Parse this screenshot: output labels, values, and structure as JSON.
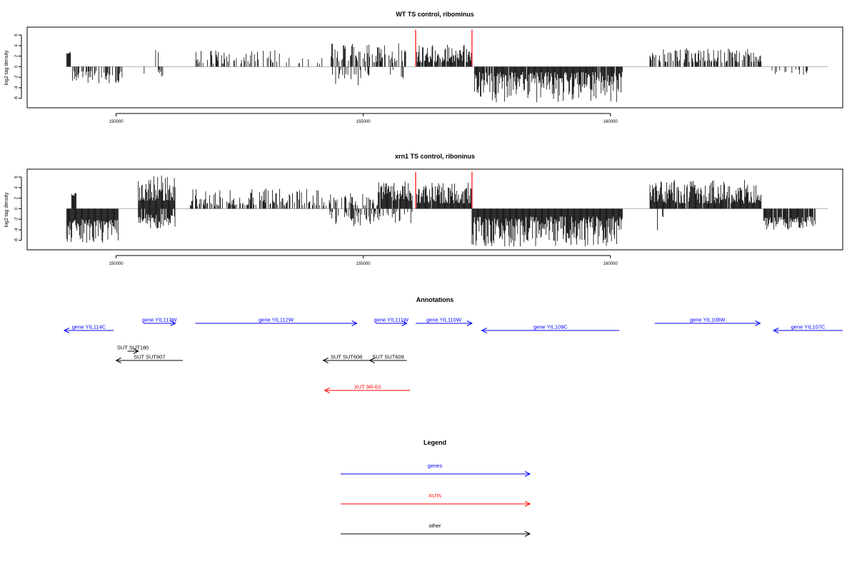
{
  "chart_data": [
    {
      "type": "bar",
      "title": "WT TS control, ribominus",
      "ylabel": "log2 tag density",
      "xlim": [
        148200,
        164700
      ],
      "ylim": [
        -7.8,
        7.5
      ],
      "x_ticks": [
        150000,
        155000,
        160000
      ],
      "x_tick_labels": [
        "150000",
        "155000",
        "160000"
      ],
      "y_ticks": [
        -6,
        -4,
        -2,
        0,
        2,
        4,
        6
      ],
      "y_tick_labels": [
        "-6",
        "-4",
        "-2",
        "0",
        "2",
        "4",
        "6"
      ],
      "baseline": 0,
      "bar_color": "#000000",
      "markers": [
        {
          "x": 156060,
          "y": 7,
          "color": "#ff0000"
        },
        {
          "x": 157200,
          "y": 7,
          "color": "#ff0000"
        }
      ],
      "segments": [
        {
          "from": 149000,
          "to": 149080,
          "sign": 1,
          "min": 2.4,
          "max": 3.0,
          "density": 1.0
        },
        {
          "from": 149080,
          "to": 150150,
          "sign": -1,
          "min": 0.8,
          "max": 3.2,
          "density": 0.5
        },
        {
          "from": 150450,
          "to": 151050,
          "sign": -1,
          "min": 0.5,
          "max": 2.0,
          "density": 0.22
        },
        {
          "from": 150500,
          "to": 150900,
          "sign": 1,
          "min": 0.5,
          "max": 3.4,
          "density": 0.12
        },
        {
          "from": 151600,
          "to": 153500,
          "sign": 1,
          "min": 0.6,
          "max": 3.2,
          "density": 0.32
        },
        {
          "from": 153500,
          "to": 154300,
          "sign": 1,
          "min": 0.5,
          "max": 2.0,
          "density": 0.14
        },
        {
          "from": 154350,
          "to": 155900,
          "sign": 1,
          "min": 0.8,
          "max": 4.4,
          "density": 0.55
        },
        {
          "from": 154350,
          "to": 155150,
          "sign": -1,
          "min": 0.5,
          "max": 3.6,
          "density": 0.2
        },
        {
          "from": 155550,
          "to": 155900,
          "sign": -1,
          "min": 0.5,
          "max": 3.2,
          "density": 0.25
        },
        {
          "from": 156080,
          "to": 157200,
          "sign": 1,
          "min": 0.8,
          "max": 4.2,
          "density": 0.9
        },
        {
          "from": 157250,
          "to": 160250,
          "sign": -1,
          "min": 1.0,
          "max": 6.8,
          "density": 0.95
        },
        {
          "from": 160800,
          "to": 163050,
          "sign": 1,
          "min": 0.8,
          "max": 3.5,
          "density": 0.6
        },
        {
          "from": 163100,
          "to": 164400,
          "sign": -1,
          "min": 0.5,
          "max": 1.8,
          "density": 0.18
        }
      ]
    },
    {
      "type": "bar",
      "title": "xrn1 TS control, riboninus",
      "ylabel": "log2 tag density",
      "xlim": [
        148200,
        164700
      ],
      "ylim": [
        -7.8,
        7.5
      ],
      "x_ticks": [
        150000,
        155000,
        160000
      ],
      "x_tick_labels": [
        "150000",
        "155000",
        "160000"
      ],
      "y_ticks": [
        -6,
        -4,
        -2,
        0,
        2,
        4,
        6
      ],
      "y_tick_labels": [
        "-6",
        "-4",
        "-2",
        "0",
        "2",
        "4",
        "6"
      ],
      "baseline": 0,
      "bar_color": "#000000",
      "markers": [
        {
          "x": 156060,
          "y": 7,
          "color": "#ff0000"
        },
        {
          "x": 157200,
          "y": 7,
          "color": "#ff0000"
        }
      ],
      "segments": [
        {
          "from": 149100,
          "to": 149200,
          "sign": 1,
          "min": 2.5,
          "max": 3.0,
          "density": 1.0
        },
        {
          "from": 149000,
          "to": 150050,
          "sign": -1,
          "min": 2.0,
          "max": 6.5,
          "density": 1.0
        },
        {
          "from": 150450,
          "to": 151200,
          "sign": 1,
          "min": 1.5,
          "max": 6.8,
          "density": 1.0
        },
        {
          "from": 150450,
          "to": 151200,
          "sign": -1,
          "min": 1.0,
          "max": 3.8,
          "density": 0.8
        },
        {
          "from": 151500,
          "to": 154300,
          "sign": 1,
          "min": 0.5,
          "max": 3.8,
          "density": 0.5
        },
        {
          "from": 154300,
          "to": 155300,
          "sign": 1,
          "min": 0.5,
          "max": 3.0,
          "density": 0.5
        },
        {
          "from": 154300,
          "to": 155300,
          "sign": -1,
          "min": 0.5,
          "max": 3.5,
          "density": 0.5
        },
        {
          "from": 155300,
          "to": 156000,
          "sign": 1,
          "min": 1.5,
          "max": 5.2,
          "density": 0.9
        },
        {
          "from": 155300,
          "to": 156000,
          "sign": -1,
          "min": 0.5,
          "max": 2.8,
          "density": 0.3
        },
        {
          "from": 156080,
          "to": 157200,
          "sign": 1,
          "min": 1.0,
          "max": 5.0,
          "density": 0.95
        },
        {
          "from": 157200,
          "to": 160250,
          "sign": -1,
          "min": 1.5,
          "max": 7.2,
          "density": 1.0
        },
        {
          "from": 160800,
          "to": 163050,
          "sign": 1,
          "min": 1.0,
          "max": 5.5,
          "density": 0.95
        },
        {
          "from": 160950,
          "to": 161100,
          "sign": -1,
          "min": 1.0,
          "max": 4.5,
          "density": 0.3
        },
        {
          "from": 163100,
          "to": 164150,
          "sign": -1,
          "min": 1.5,
          "max": 4.0,
          "density": 0.95
        }
      ]
    }
  ],
  "annotations": {
    "title": "Annotations",
    "features": [
      {
        "label": "gene YIL114C",
        "type": "gene",
        "x_start": 149950,
        "x_end": 148950,
        "row": 1
      },
      {
        "label": "gene YIL113W",
        "type": "gene",
        "x_start": 150550,
        "x_end": 151200,
        "row": 0
      },
      {
        "label": "gene YIL112W",
        "type": "gene",
        "x_start": 151600,
        "x_end": 154870,
        "row": 0
      },
      {
        "label": "gene YIL111W",
        "type": "gene",
        "x_start": 155250,
        "x_end": 155880,
        "row": 0
      },
      {
        "label": "gene YIL110W",
        "type": "gene",
        "x_start": 156060,
        "x_end": 157200,
        "row": 0
      },
      {
        "label": "gene YIL109C",
        "type": "gene",
        "x_start": 160180,
        "x_end": 157400,
        "row": 1
      },
      {
        "label": "gene YIL108W",
        "type": "gene",
        "x_start": 160900,
        "x_end": 163030,
        "row": 0
      },
      {
        "label": "gene YIL107C",
        "type": "gene",
        "x_start": 164700,
        "x_end": 163300,
        "row": 1
      },
      {
        "label": "SUT SUT180",
        "type": "other",
        "x_start": 150230,
        "x_end": 150450,
        "row": 2
      },
      {
        "label": "SUT SUT607",
        "type": "other",
        "x_start": 151350,
        "x_end": 150000,
        "row": 3
      },
      {
        "label": "SUT SUT608",
        "type": "other",
        "x_start": 155130,
        "x_end": 154190,
        "row": 3
      },
      {
        "label": "SUT SUT609",
        "type": "other",
        "x_start": 155880,
        "x_end": 155130,
        "row": 3
      },
      {
        "label": "XUT 9R-63",
        "type": "xut",
        "x_start": 155950,
        "x_end": 154220,
        "row": 4
      }
    ]
  },
  "legend": {
    "title": "Legend",
    "items": [
      {
        "label": "genes",
        "color": "#0000ff"
      },
      {
        "label": "XUTs",
        "color": "#ff0000"
      },
      {
        "label": "other",
        "color": "#000000"
      }
    ]
  },
  "colors": {
    "gene": "#0000ff",
    "xut": "#ff0000",
    "other": "#000000"
  }
}
